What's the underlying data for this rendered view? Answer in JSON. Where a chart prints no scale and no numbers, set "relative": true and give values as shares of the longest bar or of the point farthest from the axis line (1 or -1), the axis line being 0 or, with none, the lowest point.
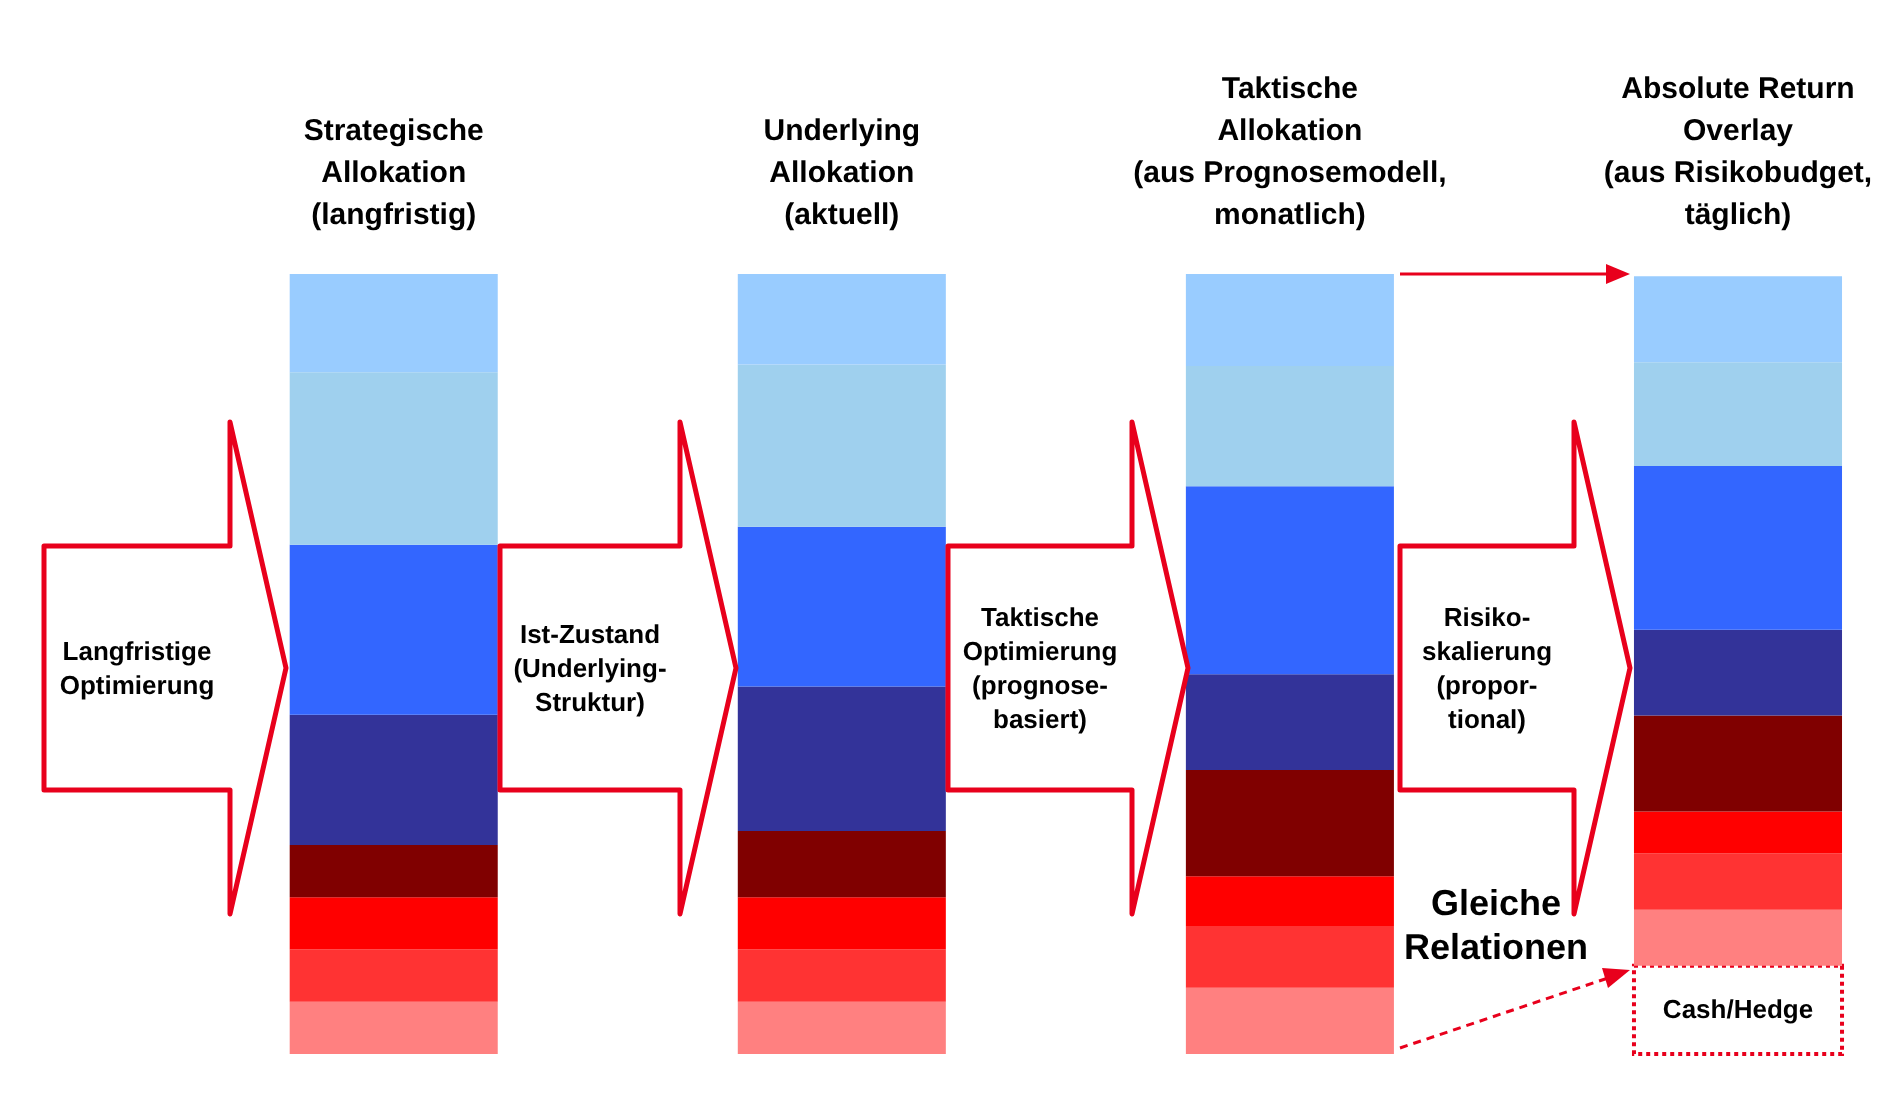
{
  "chart_data": {
    "type": "bar",
    "stacked": true,
    "relative": true,
    "categories": [
      "Strategische\nAllokation\n(langfristig)",
      "Underlying\nAllokation\n(aktuell)",
      "Taktische\nAllokation\n(aus Prognosemodell,\nmonatlich)",
      "Absolute Return\nOverlay\n(aus Risikobudget,\ntäglich)"
    ],
    "series": [
      {
        "name": "Cash/Hedge",
        "color": "#ffffff",
        "values": [
          null,
          null,
          null,
          0.113
        ]
      },
      {
        "color": "#ff8080",
        "values": [
          0.067,
          0.067,
          0.085,
          0.072
        ]
      },
      {
        "color": "#ff3333",
        "values": [
          0.067,
          0.067,
          0.079,
          0.072
        ]
      },
      {
        "color": "#ff0000",
        "values": [
          0.067,
          0.067,
          0.064,
          0.054
        ]
      },
      {
        "color": "#800000",
        "values": [
          0.067,
          0.085,
          0.136,
          0.123
        ]
      },
      {
        "color": "#333399",
        "values": [
          0.167,
          0.185,
          0.123,
          0.11
        ]
      },
      {
        "color": "#3366ff",
        "values": [
          0.218,
          0.205,
          0.241,
          0.21
        ]
      },
      {
        "color": "#9fd0ee",
        "values": [
          0.221,
          0.208,
          0.154,
          0.133
        ]
      },
      {
        "color": "#99ccff",
        "values": [
          0.126,
          0.116,
          0.118,
          0.11
        ]
      }
    ],
    "annotations": [
      "Langfristige\nOptimierung",
      "Ist-Zustand\n(Underlying-\nStruktur)",
      "Taktische\nOptimierung\n(prognose-\nbasiert)",
      "Risiko-\nskalierung\n(propor-\ntional)",
      "Gleiche\nRelationen"
    ]
  }
}
